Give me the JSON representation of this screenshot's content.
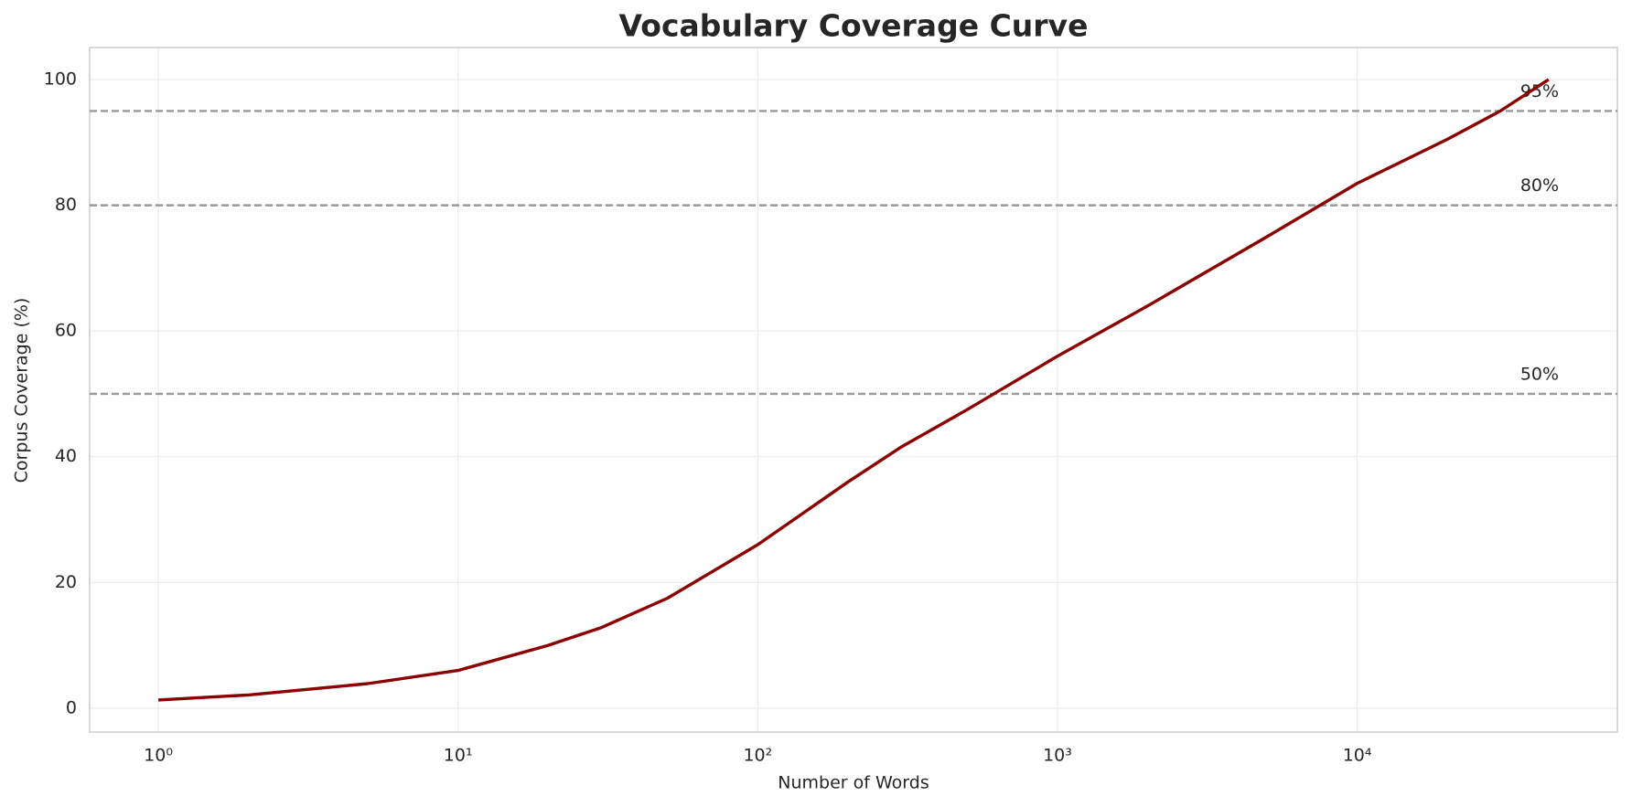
{
  "chart_data": {
    "type": "line",
    "title": "Vocabulary Coverage Curve",
    "x_label": "Number of Words",
    "y_label": "Corpus Coverage (%)",
    "x_scale": "log",
    "x": [
      1,
      2,
      5,
      10,
      20,
      30,
      50,
      100,
      200,
      300,
      500,
      1000,
      2000,
      5000,
      10000,
      20000,
      30000,
      43500
    ],
    "values": [
      1.3,
      2.1,
      3.9,
      6.0,
      10.0,
      12.8,
      17.5,
      26.0,
      36.0,
      41.5,
      47.5,
      56.0,
      64.0,
      75.0,
      83.5,
      90.5,
      95.0,
      100.0
    ],
    "color": "#8b0000",
    "xlim": [
      0.59,
      73800
    ],
    "ylim": [
      -3.8,
      105.1
    ],
    "xticks": [
      {
        "value": 1,
        "label": "10⁰"
      },
      {
        "value": 10,
        "label": "10¹"
      },
      {
        "value": 100,
        "label": "10²"
      },
      {
        "value": 1000,
        "label": "10³"
      },
      {
        "value": 10000,
        "label": "10⁴"
      }
    ],
    "yticks": [
      0,
      20,
      40,
      60,
      80,
      100
    ],
    "grid": true,
    "reference_lines": [
      {
        "value": 50,
        "label": "50%",
        "label_x": 35000
      },
      {
        "value": 80,
        "label": "80%",
        "label_x": 35000
      },
      {
        "value": 95,
        "label": "95%",
        "label_x": 35000
      }
    ],
    "reference_color": "#999999"
  }
}
